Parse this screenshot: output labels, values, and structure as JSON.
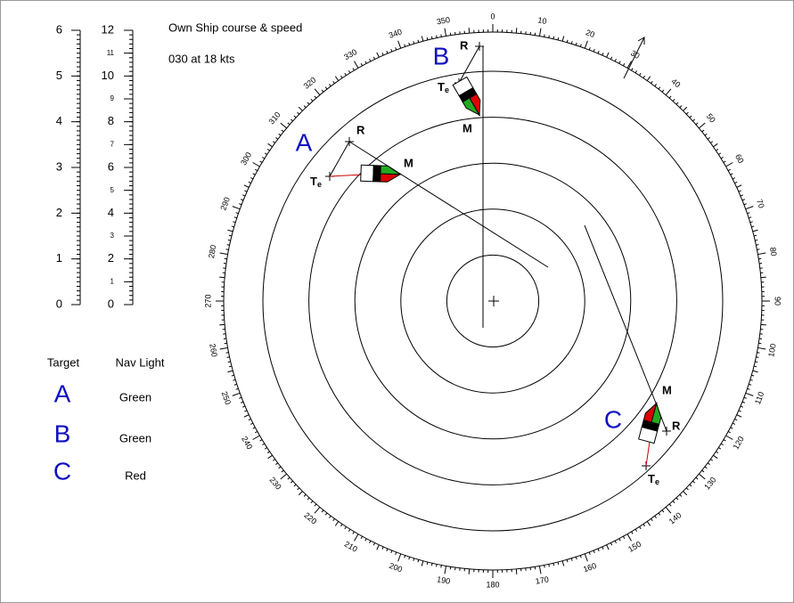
{
  "header": {
    "title": "Own Ship course & speed",
    "course_speed": "030 at 18 kts"
  },
  "scales": [
    {
      "ticks": [
        0,
        1,
        2,
        3,
        4,
        5,
        6
      ]
    },
    {
      "ticks": [
        0,
        1,
        2,
        3,
        4,
        5,
        6,
        7,
        8,
        9,
        10,
        11,
        12
      ]
    }
  ],
  "bearings": [
    0,
    10,
    20,
    30,
    40,
    50,
    60,
    70,
    80,
    90,
    100,
    110,
    120,
    130,
    140,
    150,
    160,
    170,
    180,
    190,
    200,
    210,
    220,
    230,
    240,
    250,
    260,
    270,
    280,
    290,
    300,
    310,
    320,
    330,
    340,
    350
  ],
  "table": {
    "headers": [
      "Target",
      "Nav Light"
    ],
    "rows": [
      [
        "A",
        "Green"
      ],
      [
        "B",
        "Green"
      ],
      [
        "C",
        "Red"
      ]
    ]
  },
  "targets": [
    {
      "name": "A",
      "r": "R",
      "m": "M",
      "te": {
        "main": "T",
        "sub": "e"
      }
    },
    {
      "name": "B",
      "r": "R",
      "m": "M",
      "te": {
        "main": "T",
        "sub": "e"
      }
    },
    {
      "name": "C",
      "r": "R",
      "m": "M",
      "te": {
        "main": "T",
        "sub": "e"
      }
    }
  ]
}
